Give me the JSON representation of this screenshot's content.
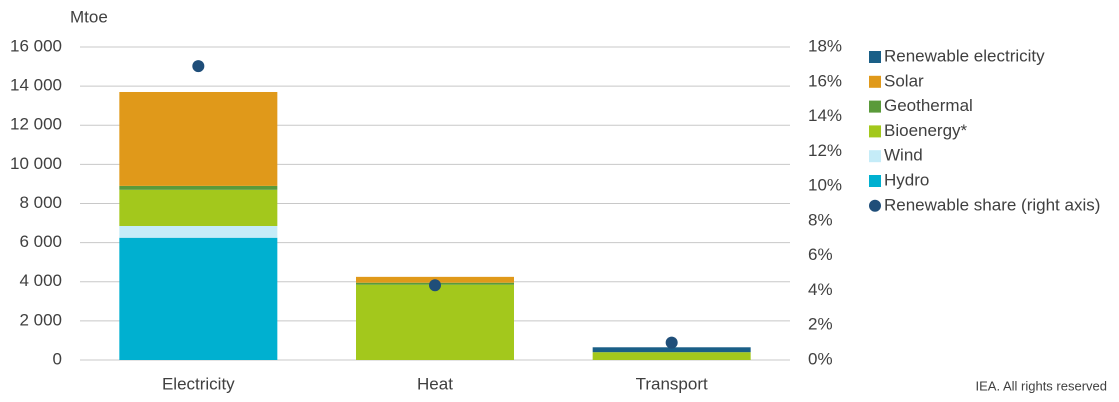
{
  "chart_data": {
    "type": "bar",
    "stacked": true,
    "unit_label": "Mtoe",
    "source": "IEA. All rights reserved",
    "categories": [
      "Electricity",
      "Heat",
      "Transport"
    ],
    "series": [
      {
        "name": "Renewable electricity",
        "color": "#1a5f87",
        "values": [
          0,
          0,
          250
        ]
      },
      {
        "name": "Solar",
        "color": "#e0991a",
        "values": [
          4800,
          300,
          0
        ]
      },
      {
        "name": "Geothermal",
        "color": "#5a9a3a",
        "values": [
          200,
          100,
          0
        ]
      },
      {
        "name": "Bioenergy*",
        "color": "#a3c81c",
        "values": [
          1850,
          3850,
          400
        ]
      },
      {
        "name": "Wind",
        "color": "#c5ecf8",
        "values": [
          600,
          0,
          0
        ]
      },
      {
        "name": "Hydro",
        "color": "#00b0d0",
        "values": [
          6250,
          0,
          0
        ]
      },
      {
        "name": "Renewable share (right axis)",
        "color": "#1f4e79",
        "type": "scatter",
        "axis": "y2",
        "values": [
          16.9,
          4.3,
          1.0
        ]
      }
    ],
    "ylim": [
      0,
      16000
    ],
    "yticks": [
      0,
      {
        "value": 2000,
        "label": "2 000"
      },
      {
        "value": 4000,
        "label": "4 000"
      },
      {
        "value": 6000,
        "label": "6 000"
      },
      {
        "value": 8000,
        "label": "8 000"
      },
      {
        "value": 10000,
        "label": "10 000"
      },
      {
        "value": 12000,
        "label": "12 000"
      },
      {
        "value": 14000,
        "label": "14 000"
      },
      {
        "value": 16000,
        "label": "16 000"
      }
    ],
    "y2lim": [
      0,
      18
    ],
    "y2ticks": [
      {
        "value": 0,
        "label": "0%"
      },
      {
        "value": 2,
        "label": "2%"
      },
      {
        "value": 4,
        "label": "4%"
      },
      {
        "value": 6,
        "label": "6%"
      },
      {
        "value": 8,
        "label": "8%"
      },
      {
        "value": 10,
        "label": "10%"
      },
      {
        "value": 12,
        "label": "12%"
      },
      {
        "value": 14,
        "label": "14%"
      },
      {
        "value": 16,
        "label": "16%"
      },
      {
        "value": 18,
        "label": "18%"
      }
    ],
    "grid": true,
    "legend": "right"
  }
}
